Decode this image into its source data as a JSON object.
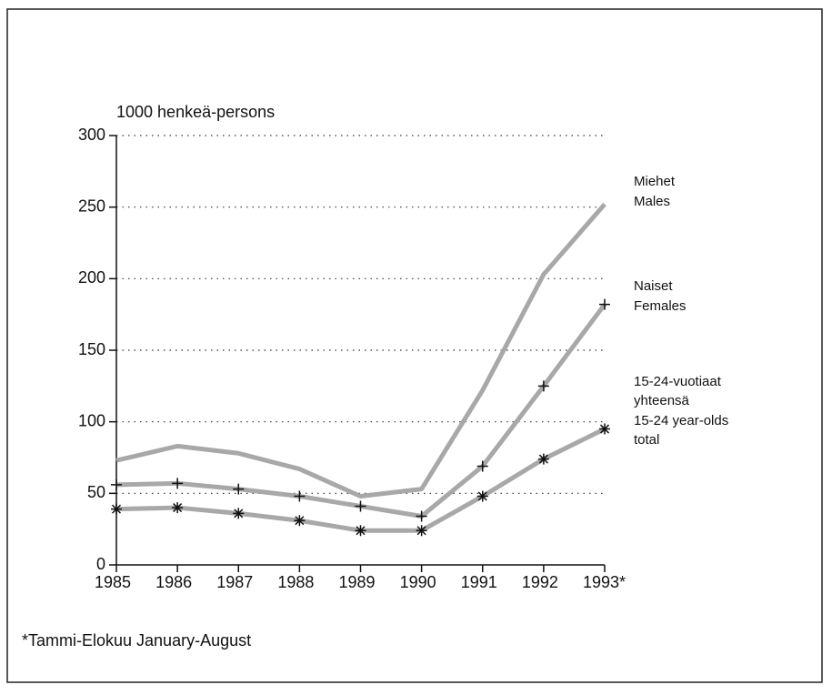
{
  "chart_data": {
    "type": "line",
    "y_label": "1000 henkeä-persons",
    "footnote": "*Tammi-Elokuu January-August",
    "categories": [
      "1985",
      "1986",
      "1987",
      "1988",
      "1989",
      "1990",
      "1991",
      "1992",
      "1993*"
    ],
    "series": [
      {
        "name": [
          "Miehet",
          "Males"
        ],
        "color": "#a8a8a8",
        "marker": "none",
        "values": [
          73,
          83,
          78,
          67,
          48,
          53,
          122,
          203,
          252
        ]
      },
      {
        "name": [
          "Naiset",
          "Females"
        ],
        "color": "#a8a8a8",
        "marker": "plus",
        "values": [
          56,
          57,
          53,
          48,
          41,
          34,
          69,
          125,
          182
        ]
      },
      {
        "name": [
          "15-24-vuotiaat",
          "yhteensä",
          "15-24 year-olds",
          " total"
        ],
        "color": "#a8a8a8",
        "marker": "star",
        "values": [
          39,
          40,
          36,
          31,
          24,
          24,
          48,
          74,
          95
        ]
      }
    ],
    "ylim": [
      0,
      300
    ],
    "yticks": [
      0,
      50,
      100,
      150,
      200,
      250,
      300
    ],
    "grid": true
  }
}
